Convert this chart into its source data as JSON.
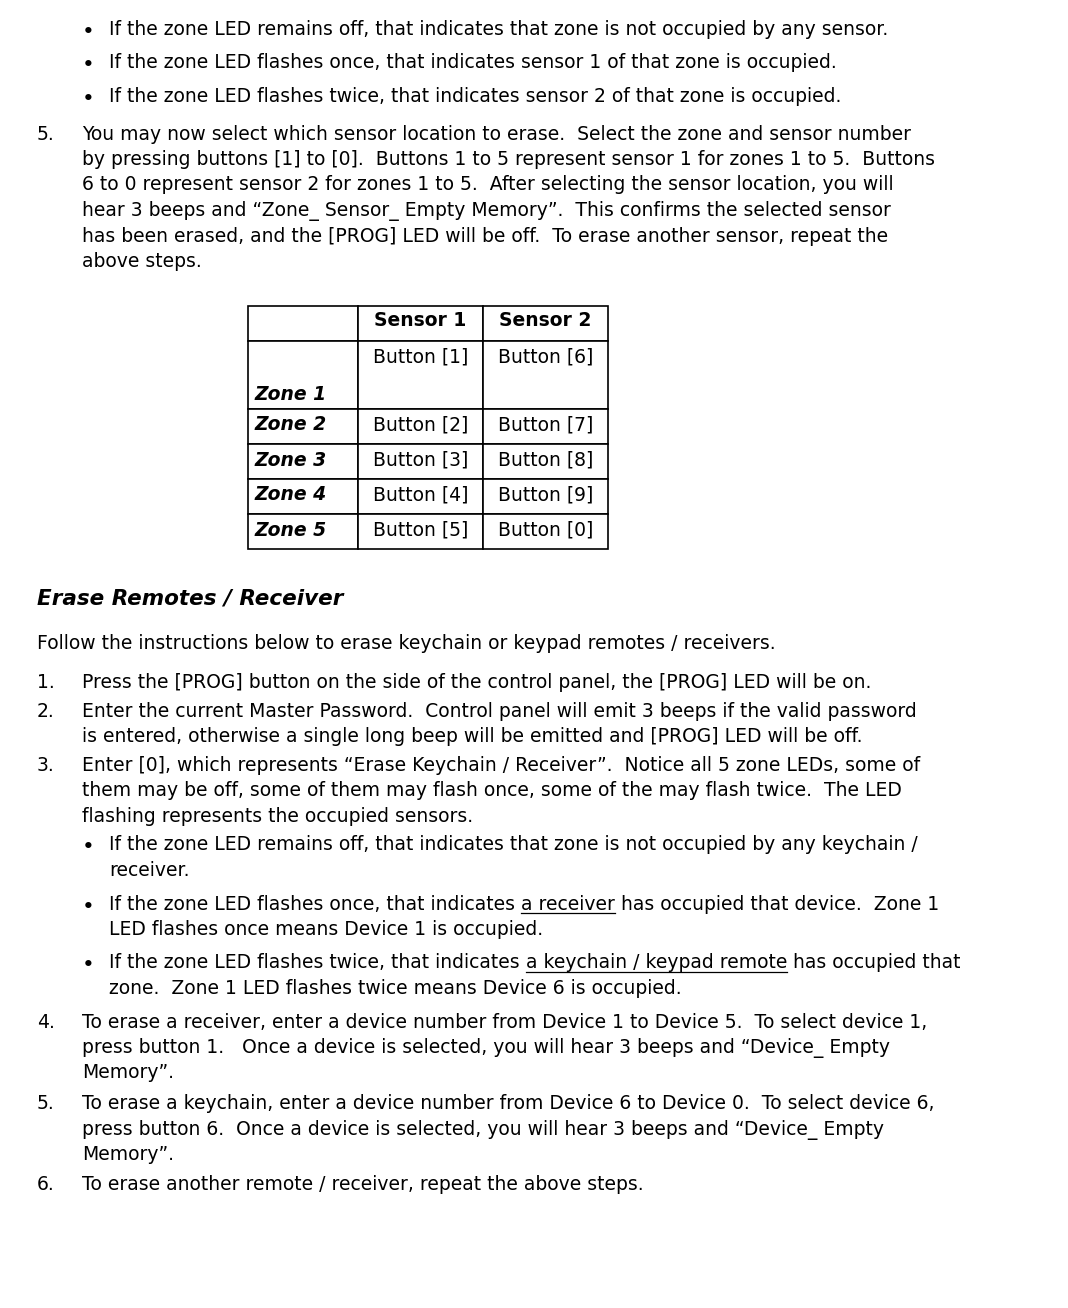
{
  "bg_color": "#ffffff",
  "text_color": "#000000",
  "font_size_body": 13.5,
  "font_size_title": 15.5,
  "bullet_items_top": [
    "If the zone LED remains off, that indicates that zone is not occupied by any sensor.",
    "If the zone LED flashes once, that indicates sensor 1 of that zone is occupied.",
    "If the zone LED flashes twice, that indicates sensor 2 of that zone is occupied."
  ],
  "item5_lines": [
    "You may now select which sensor location to erase.  Select the zone and sensor number",
    "by pressing buttons [1] to [0].  Buttons 1 to 5 represent sensor 1 for zones 1 to 5.  Buttons",
    "6 to 0 represent sensor 2 for zones 1 to 5.  After selecting the sensor location, you will",
    "hear 3 beeps and “Zone_ Sensor_ Empty Memory”.  This confirms the selected sensor",
    "has been erased, and the [PROG] LED will be off.  To erase another sensor, repeat the",
    "above steps."
  ],
  "table_headers": [
    "",
    "Sensor 1",
    "Sensor 2"
  ],
  "table_rows": [
    [
      "Zone 1",
      "Button [1]",
      "Button [6]"
    ],
    [
      "Zone 2",
      "Button [2]",
      "Button [7]"
    ],
    [
      "Zone 3",
      "Button [3]",
      "Button [8]"
    ],
    [
      "Zone 4",
      "Button [4]",
      "Button [9]"
    ],
    [
      "Zone 5",
      "Button [5]",
      "Button [0]"
    ]
  ],
  "section_title": "Erase Remotes / Receiver",
  "intro_text": "Follow the instructions below to erase keychain or keypad remotes / receivers.",
  "numbered_items": [
    {
      "num": "1.",
      "lines": [
        "Press the [PROG] button on the side of the control panel, the [PROG] LED will be on."
      ]
    },
    {
      "num": "2.",
      "lines": [
        "Enter the current Master Password.  Control panel will emit 3 beeps if the valid password",
        "is entered, otherwise a single long beep will be emitted and [PROG] LED will be off."
      ]
    },
    {
      "num": "3.",
      "lines": [
        "Enter [0], which represents “Erase Keychain / Receiver”.  Notice all 5 zone LEDs, some of",
        "them may be off, some of them may flash once, some of the may flash twice.  The LED",
        "flashing represents the occupied sensors."
      ]
    }
  ],
  "bullet_items_mid": [
    {
      "plain": "If the zone LED remains off, that indicates that zone is not occupied by any keychain /\nreceiver.",
      "underline": null
    },
    {
      "plain_before": "If the zone LED flashes once, that indicates ",
      "underline": "a receiver",
      "plain_after": " has occupied that device.  Zone 1\nLED flashes once means Device 1 is occupied."
    },
    {
      "plain_before": "If the zone LED flashes twice, that indicates ",
      "underline": "a keychain / keypad remote",
      "plain_after": " has occupied that\nzone.  Zone 1 LED flashes twice means Device 6 is occupied."
    }
  ],
  "numbered_items2": [
    {
      "num": "4.",
      "lines": [
        "To erase a receiver, enter a device number from Device 1 to Device 5.  To select device 1,",
        "press button 1.   Once a device is selected, you will hear 3 beeps and “Device_ Empty",
        "Memory”."
      ]
    },
    {
      "num": "5.",
      "lines": [
        "To erase a keychain, enter a device number from Device 6 to Device 0.  To select device 6,",
        "press button 6.  Once a device is selected, you will hear 3 beeps and “Device_ Empty",
        "Memory”."
      ]
    },
    {
      "num": "6.",
      "lines": [
        "To erase another remote / receiver, repeat the above steps."
      ]
    }
  ]
}
